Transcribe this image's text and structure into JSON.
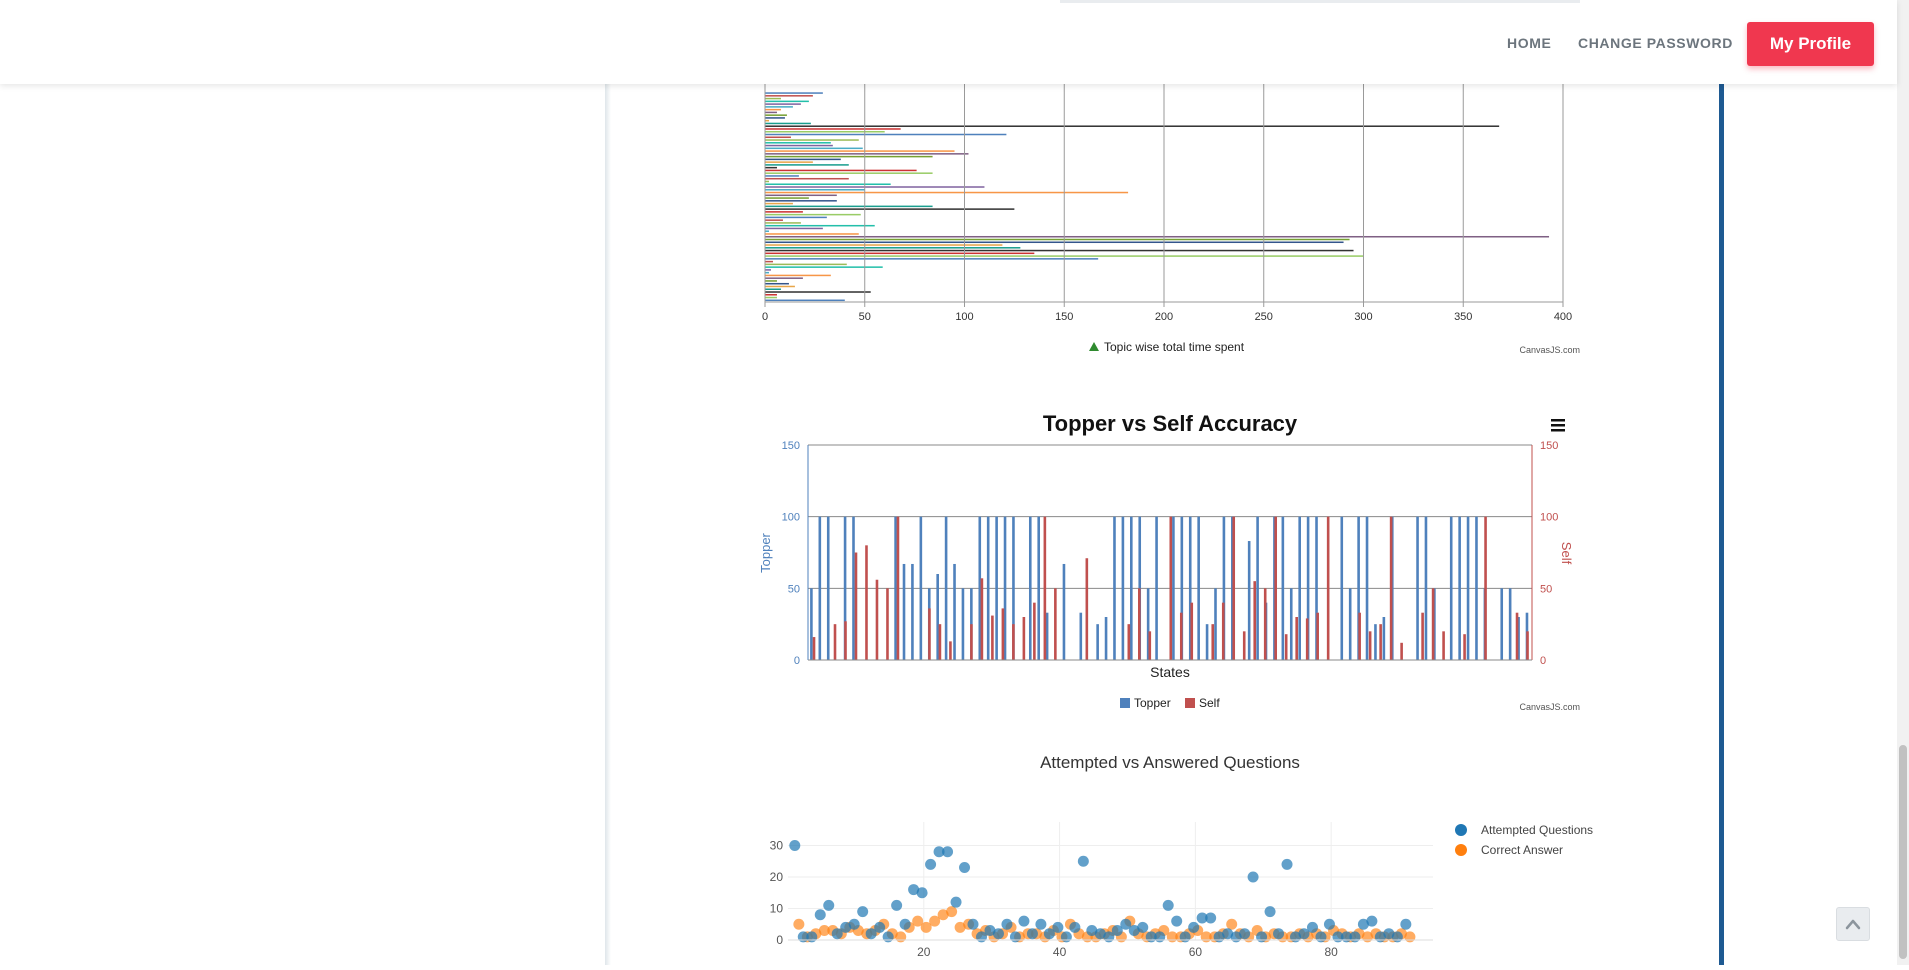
{
  "nav": {
    "home": "HOME",
    "change_password": "CHANGE PASSWORD",
    "profile_button": "My Profile"
  },
  "colors": {
    "accent": "#f0374f",
    "topper": "#4f81bc",
    "self": "#c0504e",
    "attempted": "#1f77b4",
    "correct": "#ff7f0e",
    "rail": "#1e5a92"
  },
  "credits": {
    "canvasjs": "CanvasJS.com"
  },
  "chart_data": [
    {
      "type": "bar",
      "orientation": "horizontal",
      "xlim": [
        0,
        400
      ],
      "x_ticks": [
        "0",
        "50",
        "100",
        "150",
        "200",
        "250",
        "300",
        "350",
        "400"
      ],
      "legend": "Topic wise total time spent",
      "legend_position": "bottom",
      "values": [
        29,
        24,
        8,
        22,
        18,
        14,
        8,
        6,
        11,
        10,
        2,
        23,
        368,
        68,
        60,
        121,
        13,
        47,
        33,
        34,
        49,
        95,
        102,
        84,
        38,
        24,
        42,
        6,
        76,
        84,
        17,
        42,
        2,
        63,
        110,
        50,
        182,
        36,
        22,
        36,
        14,
        84,
        125,
        19,
        48,
        31,
        9,
        18,
        55,
        29,
        2,
        47,
        393,
        293,
        290,
        119,
        128,
        295,
        135,
        300,
        167,
        4,
        41,
        59,
        3,
        2,
        33,
        19,
        6,
        12,
        15,
        8,
        53,
        6,
        6,
        40
      ],
      "grid": true
    },
    {
      "type": "bar",
      "title": "Topper vs Self Accuracy",
      "xlabel": "States",
      "ylabel_left": "Topper",
      "ylabel_right": "Self",
      "ylim": [
        0,
        150
      ],
      "y_ticks": [
        "0",
        "50",
        "100",
        "150"
      ],
      "legend_position": "bottom",
      "series": [
        {
          "name": "Topper",
          "values": [
            50,
            100,
            100,
            0,
            100,
            100,
            0,
            0,
            0,
            0,
            100,
            67,
            67,
            100,
            50,
            60,
            100,
            67,
            50,
            50,
            100,
            100,
            100,
            100,
            100,
            0,
            100,
            100,
            33,
            0,
            67,
            0,
            33,
            0,
            25,
            30,
            100,
            100,
            100,
            100,
            50,
            100,
            0,
            100,
            100,
            100,
            100,
            25,
            50,
            100,
            100,
            0,
            83,
            100,
            40,
            100,
            100,
            50,
            100,
            100,
            100,
            0,
            0,
            100,
            50,
            100,
            100,
            25,
            30,
            100,
            0,
            0,
            100,
            100,
            50,
            0,
            100,
            100,
            100,
            100,
            50,
            0,
            50,
            50,
            30,
            33
          ]
        },
        {
          "name": "Self",
          "values": [
            16,
            0,
            25,
            27,
            75,
            80,
            56,
            50,
            100,
            0,
            0,
            36,
            25,
            13,
            0,
            25,
            57,
            31,
            36,
            25,
            30,
            40,
            100,
            50,
            0,
            0,
            71,
            0,
            0,
            0,
            25,
            50,
            20,
            0,
            100,
            33,
            40,
            0,
            25,
            40,
            100,
            20,
            55,
            50,
            100,
            18,
            30,
            29,
            33,
            100,
            0,
            0,
            33,
            20,
            25,
            100,
            12,
            0,
            33,
            50,
            20,
            0,
            18,
            0,
            100,
            0,
            0,
            33,
            20
          ]
        }
      ]
    },
    {
      "type": "scatter",
      "title": "Attempted vs Answered Questions",
      "xlim": [
        0,
        95
      ],
      "ylim": [
        0,
        33
      ],
      "x_ticks": [
        "20",
        "40",
        "60",
        "80"
      ],
      "y_ticks": [
        "0",
        "10",
        "20",
        "30"
      ],
      "legend_position": "top-right",
      "series": [
        {
          "name": "Attempted Questions",
          "values": [
            30,
            1,
            1,
            8,
            11,
            2,
            4,
            5,
            9,
            2,
            4,
            1,
            11,
            5,
            16,
            15,
            24,
            28,
            28,
            12,
            23,
            5,
            1,
            3,
            2,
            5,
            1,
            6,
            2,
            5,
            2,
            4,
            1,
            4,
            25,
            3,
            2,
            1,
            3,
            5,
            3,
            4,
            1,
            1,
            11,
            6,
            1,
            4,
            7,
            7,
            1,
            2,
            1,
            2,
            20,
            1,
            9,
            2,
            24,
            1,
            2,
            4,
            1,
            5,
            1,
            1,
            1,
            5,
            6,
            1,
            2,
            1,
            5
          ]
        },
        {
          "name": "Correct Answer",
          "values": [
            5,
            1,
            2,
            3,
            3,
            2,
            4,
            3,
            2,
            3,
            5,
            2,
            1,
            4,
            6,
            4,
            6,
            8,
            9,
            4,
            5,
            2,
            3,
            1,
            2,
            4,
            1,
            2,
            2,
            1,
            3,
            1,
            5,
            2,
            1,
            1,
            2,
            3,
            1,
            6,
            2,
            1,
            2,
            3,
            1,
            1,
            2,
            3,
            1,
            1,
            2,
            5,
            2,
            1,
            3,
            1,
            2,
            1,
            1,
            2,
            1,
            2,
            1,
            3,
            2,
            1,
            2,
            1,
            2,
            1,
            1,
            2,
            1
          ]
        }
      ]
    }
  ]
}
